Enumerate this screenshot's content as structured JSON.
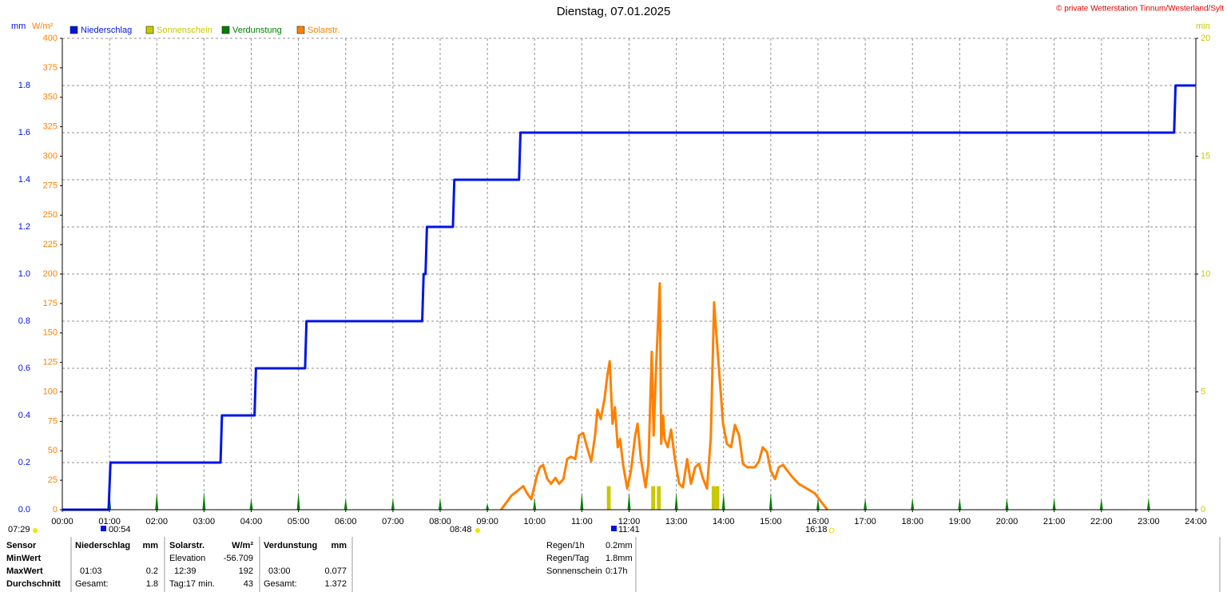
{
  "chart_data": {
    "type": "line",
    "title": "Dienstag, 07.01.2025",
    "copyright": "© private Wetterstation Tinnum/Westerland/Sylt",
    "y_unit": "mm",
    "y2_unit": "W/m²",
    "y3_unit": "min",
    "grid": true,
    "xlim": [
      0,
      24
    ],
    "xticks": [
      {
        "value": 0,
        "label": "00:00"
      },
      {
        "value": 1,
        "label": "01:00"
      },
      {
        "value": 2,
        "label": "02:00"
      },
      {
        "value": 3,
        "label": "03:00"
      },
      {
        "value": 4,
        "label": "04:00"
      },
      {
        "value": 5,
        "label": "05:00"
      },
      {
        "value": 6,
        "label": "06:00"
      },
      {
        "value": 7,
        "label": "07:00"
      },
      {
        "value": 8,
        "label": "08:00"
      },
      {
        "value": 9,
        "label": "09:00"
      },
      {
        "value": 10,
        "label": "10:00"
      },
      {
        "value": 11,
        "label": "11:00"
      },
      {
        "value": 12,
        "label": "12:00"
      },
      {
        "value": 13,
        "label": "13:00"
      },
      {
        "value": 14,
        "label": "14:00"
      },
      {
        "value": 15,
        "label": "15:00"
      },
      {
        "value": 16,
        "label": "16:00"
      },
      {
        "value": 17,
        "label": "17:00"
      },
      {
        "value": 18,
        "label": "18:00"
      },
      {
        "value": 19,
        "label": "19:00"
      },
      {
        "value": 20,
        "label": "20:00"
      },
      {
        "value": 21,
        "label": "21:00"
      },
      {
        "value": 22,
        "label": "22:00"
      },
      {
        "value": 23,
        "label": "23:00"
      },
      {
        "value": 24,
        "label": "24:00"
      }
    ],
    "ylim": [
      0,
      2
    ],
    "yticks": [
      {
        "value": 0,
        "label": "0.0"
      },
      0.2,
      0.4,
      0.6,
      0.8,
      {
        "value": 1,
        "label": "1.0"
      },
      1.2,
      1.4,
      1.6,
      1.8
    ],
    "y2lim": [
      0,
      400
    ],
    "y2ticks": [
      0,
      25,
      50,
      75,
      100,
      125,
      150,
      175,
      200,
      225,
      250,
      275,
      300,
      325,
      350,
      375,
      400
    ],
    "y3lim": [
      0,
      20
    ],
    "y3ticks": [
      0,
      5,
      10,
      15,
      20
    ],
    "series": [
      {
        "name": "Niederschlag",
        "color": "#0014e6",
        "axis": "y",
        "style": "line",
        "x": [
          0,
          0.98,
          1.02,
          3.35,
          3.38,
          4.07,
          4.1,
          5.14,
          5.17,
          7.62,
          7.65,
          7.69,
          7.72,
          8.27,
          8.3,
          9.67,
          9.7,
          23.54,
          23.57,
          24
        ],
        "values": [
          0,
          0,
          0.2,
          0.2,
          0.4,
          0.4,
          0.6,
          0.6,
          0.8,
          0.8,
          1.0,
          1.0,
          1.2,
          1.2,
          1.4,
          1.4,
          1.6,
          1.6,
          1.8,
          1.8
        ]
      },
      {
        "name": "Sonnenschein",
        "color": "#c8c800",
        "axis": "y3",
        "style": "bar",
        "x": [
          11.57,
          12.51,
          12.63,
          13.79,
          13.87
        ],
        "values": [
          1,
          1,
          1,
          1,
          1
        ]
      },
      {
        "name": "Verdunstung",
        "color": "#008000",
        "axis": "y",
        "style": "spike",
        "x": [
          1,
          2,
          3,
          4,
          5,
          6,
          7,
          8,
          9,
          10,
          11,
          12,
          13,
          14,
          15,
          16,
          17,
          18,
          19,
          20,
          21,
          22,
          23
        ],
        "values": [
          0.075,
          0.075,
          0.077,
          0.05,
          0.075,
          0.05,
          0.05,
          0.05,
          0.027,
          0.05,
          0.075,
          0.075,
          0.075,
          0.075,
          0.075,
          0.05,
          0.05,
          0.05,
          0.05,
          0.05,
          0.05,
          0.05,
          0.05
        ]
      },
      {
        "name": "Solarstr.",
        "color": "#ff8000",
        "axis": "y2",
        "style": "line",
        "x": [
          9.29,
          9.51,
          9.76,
          9.84,
          9.93,
          10.05,
          10.11,
          10.18,
          10.27,
          10.35,
          10.44,
          10.52,
          10.61,
          10.69,
          10.77,
          10.86,
          10.94,
          11.03,
          11.11,
          11.2,
          11.28,
          11.33,
          11.4,
          11.48,
          11.54,
          11.59,
          11.65,
          11.7,
          11.76,
          11.81,
          11.87,
          11.96,
          12.04,
          12.13,
          12.18,
          12.25,
          12.35,
          12.41,
          12.48,
          12.52,
          12.57,
          12.65,
          12.68,
          12.72,
          12.75,
          12.82,
          12.89,
          12.97,
          13.06,
          13.14,
          13.23,
          13.31,
          13.4,
          13.48,
          13.56,
          13.65,
          13.73,
          13.8,
          13.85,
          13.9,
          13.99,
          14.07,
          14.16,
          14.24,
          14.33,
          14.41,
          14.5,
          14.66,
          14.75,
          14.83,
          14.92,
          15,
          15.09,
          15.17,
          15.26,
          15.43,
          15.59,
          15.76,
          15.93,
          16.1,
          16.2
        ],
        "values": [
          0,
          12,
          20,
          14,
          9,
          29,
          36,
          38,
          26,
          22,
          27,
          22,
          26,
          43,
          45,
          43,
          63,
          65,
          53,
          41,
          63,
          85,
          77,
          94,
          114,
          126,
          73,
          87,
          53,
          60,
          39,
          18,
          33,
          63,
          73,
          43,
          19,
          39,
          134,
          63,
          119,
          192,
          56,
          80,
          60,
          53,
          68,
          43,
          22,
          19,
          43,
          22,
          36,
          39,
          27,
          18,
          61,
          176,
          148,
          121,
          73,
          56,
          53,
          72,
          63,
          39,
          36,
          36,
          41,
          53,
          49,
          33,
          26,
          36,
          38,
          29,
          22,
          18,
          14,
          5,
          0
        ]
      }
    ]
  },
  "time_markers": [
    "07:29",
    "00:54",
    "08:48",
    "11:41",
    "16:18"
  ],
  "stats": {
    "labels": [
      "Sensor",
      "MinWert",
      "MaxWert",
      "Durchschnitt"
    ],
    "niederschlag": {
      "name": "Niederschlag",
      "unit": "mm",
      "max_time": "01:03",
      "max": "0.2",
      "total_label": "Gesamt:",
      "total": "1.8"
    },
    "solar": {
      "name": "Solarstr.",
      "unit": "W/m²",
      "min_label": "Elevation",
      "min": "-56.709",
      "max_time": "12:39",
      "max": "192",
      "avg_label": "Tag:17 min.",
      "avg": "43"
    },
    "verdunstung": {
      "name": "Verdunstung",
      "unit": "mm",
      "max_time": "03:00",
      "max": "0.077",
      "total_label": "Gesamt:",
      "total": "1.372"
    },
    "summary": [
      [
        "Regen/1h",
        "0.2mm"
      ],
      [
        "Regen/Tag",
        "1.8mm"
      ],
      [
        "Sonnenschein",
        "0:17h"
      ]
    ]
  }
}
